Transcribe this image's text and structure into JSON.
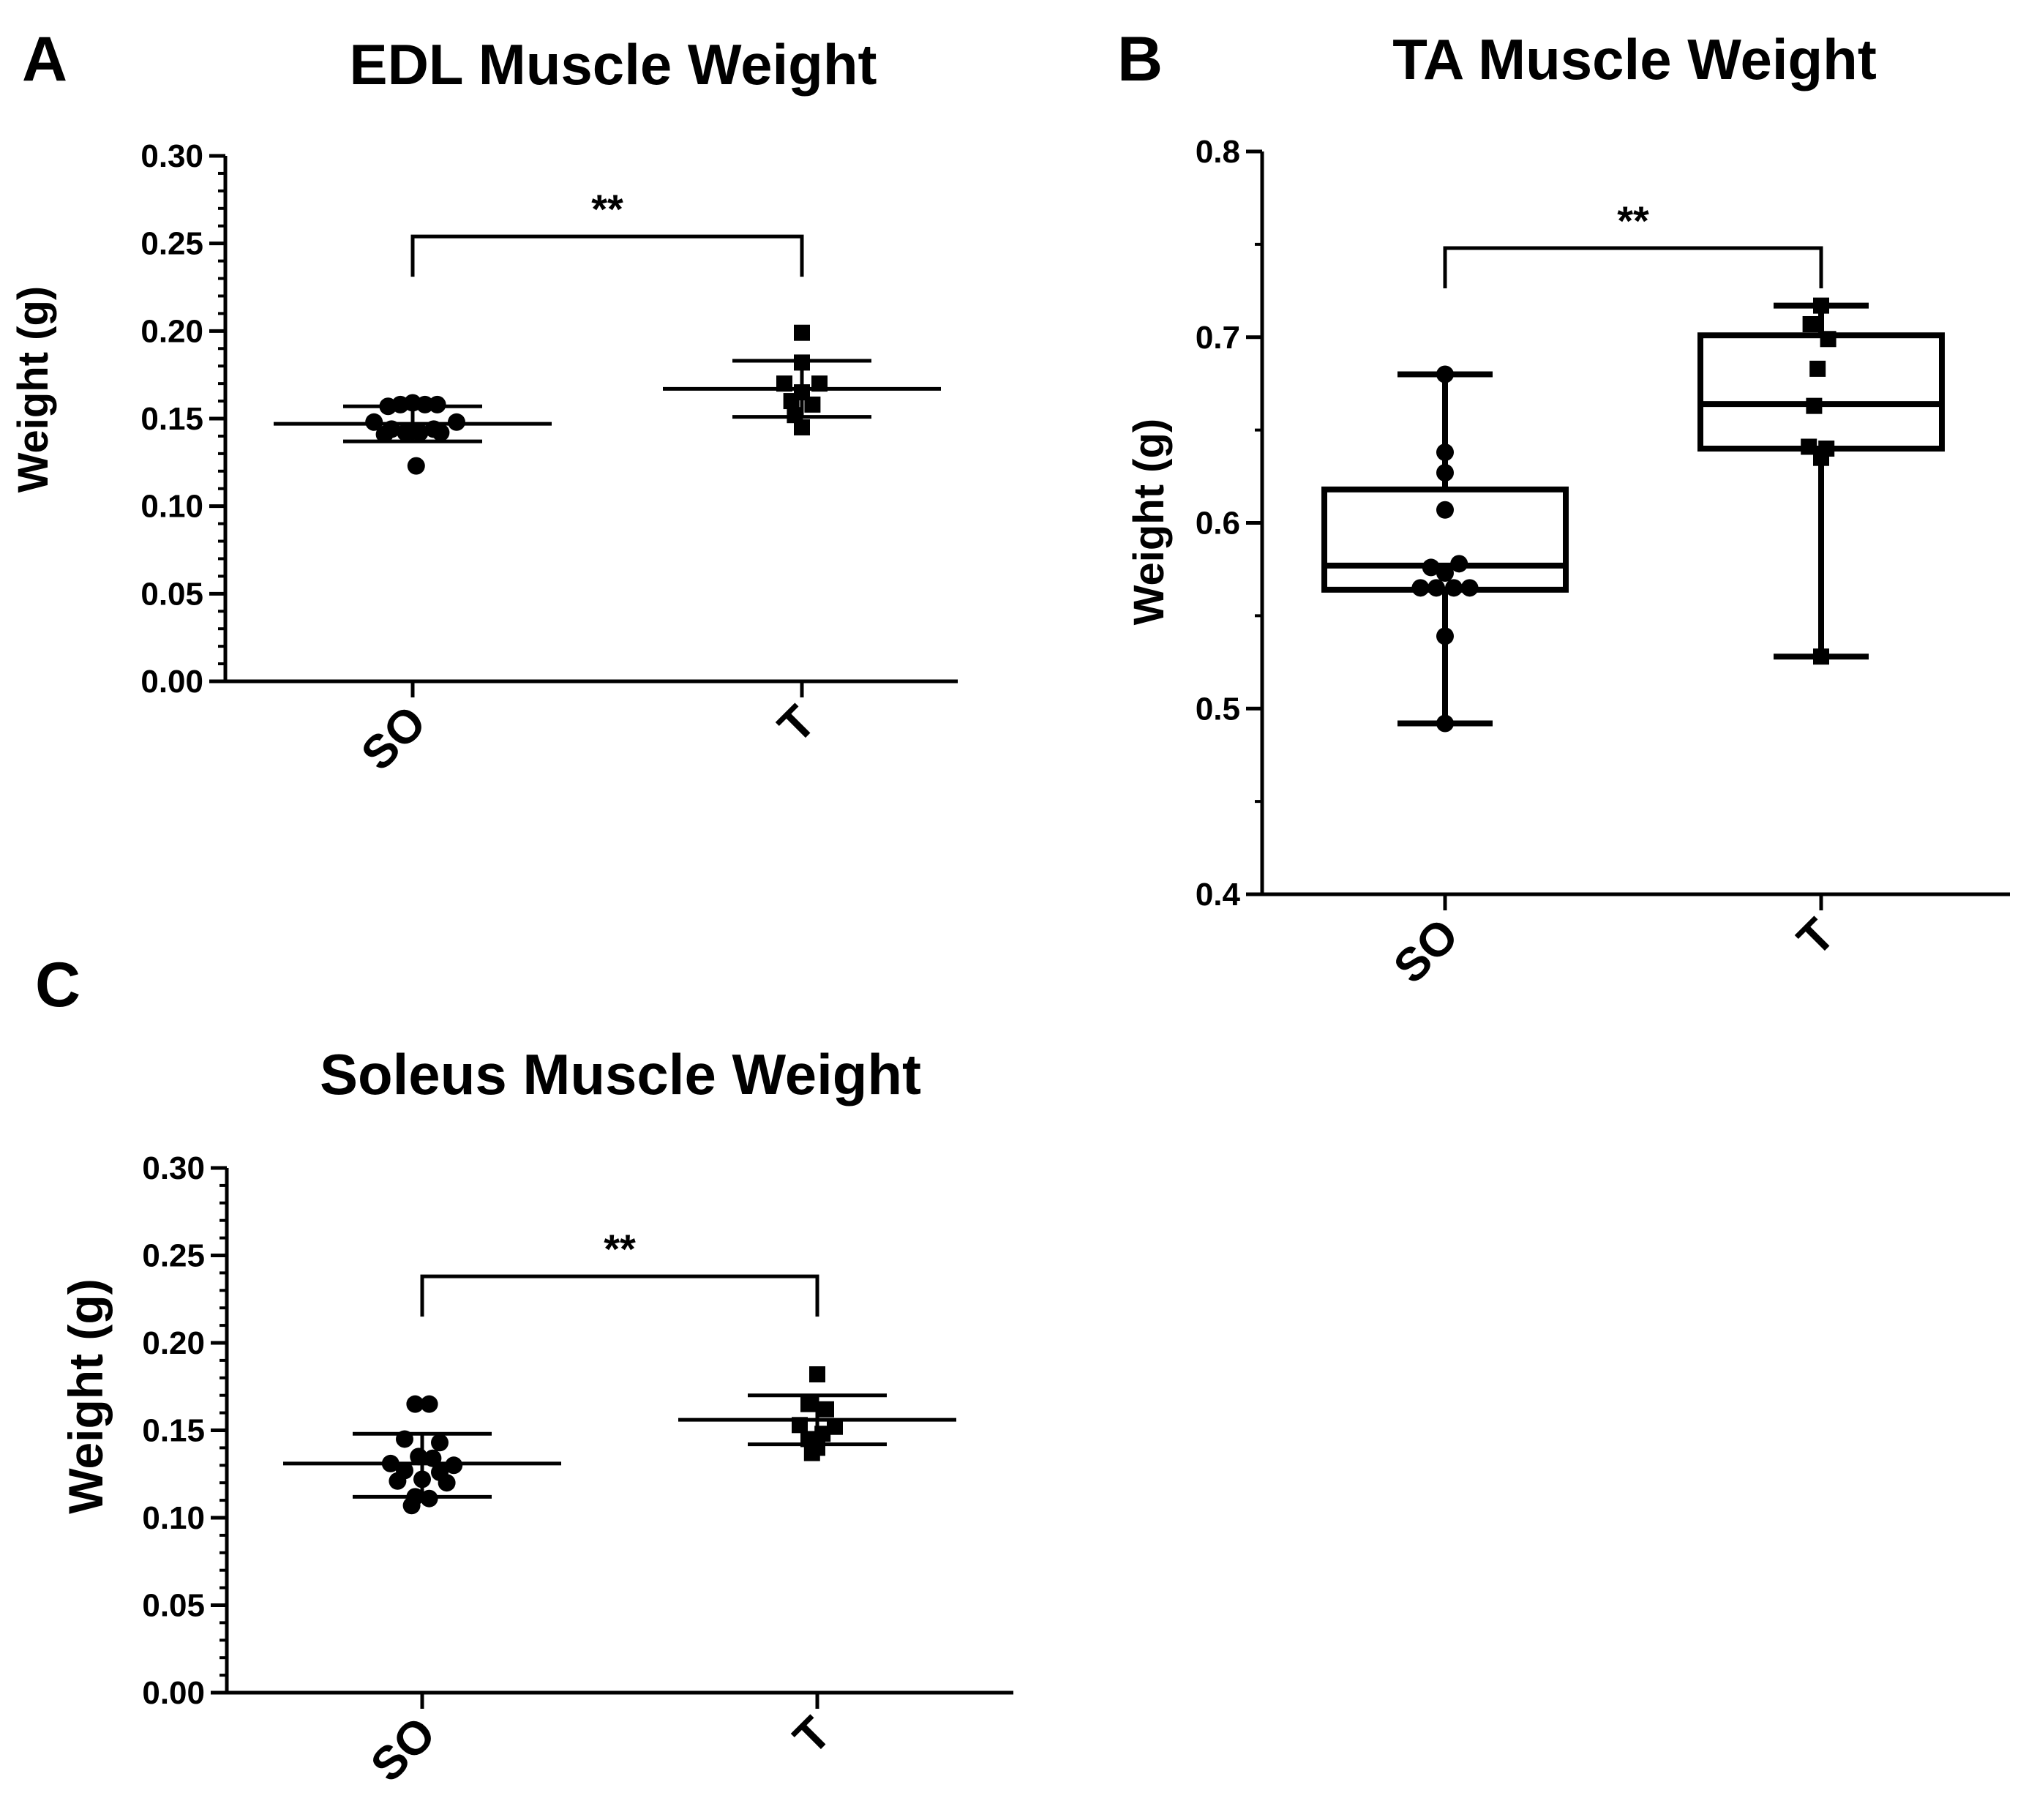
{
  "figure": {
    "significance_symbol": "**"
  },
  "chart_data": [
    {
      "panel_label": "A",
      "type": "scatter",
      "title": "EDL Muscle Weight",
      "xlabel": "",
      "ylabel": "Weight (g)",
      "categories": [
        "SO",
        "T"
      ],
      "ylim": [
        0,
        0.3
      ],
      "yticks": [
        "0.00",
        "0.05",
        "0.10",
        "0.15",
        "0.20",
        "0.25",
        "0.30"
      ],
      "ytick_values": [
        0,
        0.05,
        0.1,
        0.15,
        0.2,
        0.25,
        0.3
      ],
      "minor_tick_step": 0.01,
      "grid": false,
      "series": [
        {
          "name": "SO",
          "marker": "circle",
          "points": [
            {
              "x": 0,
              "y": 0.159
            },
            {
              "x": -0.07,
              "y": 0.158
            },
            {
              "x": 0.07,
              "y": 0.158
            },
            {
              "x": -0.14,
              "y": 0.157
            },
            {
              "x": 0.14,
              "y": 0.158
            },
            {
              "x": -0.22,
              "y": 0.148
            },
            {
              "x": 0.25,
              "y": 0.148
            },
            {
              "x": -0.12,
              "y": 0.144
            },
            {
              "x": 0.12,
              "y": 0.144
            },
            {
              "x": -0.04,
              "y": 0.142
            },
            {
              "x": 0.04,
              "y": 0.142
            },
            {
              "x": -0.16,
              "y": 0.141
            },
            {
              "x": 0.16,
              "y": 0.142
            },
            {
              "x": 0.02,
              "y": 0.123
            }
          ],
          "mean": 0.147,
          "sd_low": 0.137,
          "sd_high": 0.157
        },
        {
          "name": "T",
          "marker": "square",
          "points": [
            {
              "x": 0.0,
              "y": 0.199
            },
            {
              "x": 0.0,
              "y": 0.182
            },
            {
              "x": -0.1,
              "y": 0.17
            },
            {
              "x": 0.1,
              "y": 0.17
            },
            {
              "x": 0.0,
              "y": 0.165
            },
            {
              "x": -0.06,
              "y": 0.16
            },
            {
              "x": 0.06,
              "y": 0.158
            },
            {
              "x": -0.04,
              "y": 0.152
            },
            {
              "x": 0.0,
              "y": 0.145
            }
          ],
          "mean": 0.167,
          "sd_low": 0.151,
          "sd_high": 0.183
        }
      ],
      "bracket": {
        "y": 0.254,
        "left": "SO",
        "right": "T",
        "label": "**"
      }
    },
    {
      "panel_label": "B",
      "type": "box",
      "title": "TA Muscle  Weight",
      "xlabel": "",
      "ylabel": "Weight (g)",
      "categories": [
        "SO",
        "T"
      ],
      "ylim": [
        0.4,
        0.8
      ],
      "yticks": [
        "0.4",
        "0.5",
        "0.6",
        "0.7",
        "0.8"
      ],
      "ytick_values": [
        0.4,
        0.5,
        0.6,
        0.7,
        0.8
      ],
      "minor_tick_step": 0.05,
      "grid": false,
      "series": [
        {
          "name": "SO",
          "marker": "circle",
          "box": {
            "min": 0.492,
            "q1": 0.564,
            "median": 0.577,
            "q3": 0.618,
            "max": 0.68
          },
          "points": [
            {
              "x": 0.0,
              "y": 0.68
            },
            {
              "x": 0.0,
              "y": 0.638
            },
            {
              "x": 0.0,
              "y": 0.627
            },
            {
              "x": 0.0,
              "y": 0.607
            },
            {
              "x": -0.08,
              "y": 0.576
            },
            {
              "x": 0.08,
              "y": 0.578
            },
            {
              "x": 0.0,
              "y": 0.573
            },
            {
              "x": -0.14,
              "y": 0.565
            },
            {
              "x": -0.05,
              "y": 0.565
            },
            {
              "x": 0.05,
              "y": 0.565
            },
            {
              "x": 0.14,
              "y": 0.565
            },
            {
              "x": 0.0,
              "y": 0.539
            },
            {
              "x": 0.0,
              "y": 0.492
            }
          ]
        },
        {
          "name": "T",
          "marker": "square",
          "box": {
            "min": 0.528,
            "q1": 0.64,
            "median": 0.664,
            "q3": 0.701,
            "max": 0.717
          },
          "points": [
            {
              "x": 0.0,
              "y": 0.717
            },
            {
              "x": -0.06,
              "y": 0.707
            },
            {
              "x": 0.04,
              "y": 0.699
            },
            {
              "x": -0.02,
              "y": 0.683
            },
            {
              "x": -0.04,
              "y": 0.663
            },
            {
              "x": -0.07,
              "y": 0.641
            },
            {
              "x": 0.0,
              "y": 0.635
            },
            {
              "x": 0.03,
              "y": 0.64
            },
            {
              "x": 0.0,
              "y": 0.528
            }
          ]
        }
      ],
      "bracket": {
        "y": 0.748,
        "left": "SO",
        "right": "T",
        "label": "**"
      }
    },
    {
      "panel_label": "C",
      "type": "scatter",
      "title": "Soleus Muscle Weight",
      "xlabel": "",
      "ylabel": "Weight (g)",
      "categories": [
        "SO",
        "T"
      ],
      "ylim": [
        0,
        0.3
      ],
      "yticks": [
        "0.00",
        "0.05",
        "0.10",
        "0.15",
        "0.20",
        "0.25",
        "0.30"
      ],
      "ytick_values": [
        0,
        0.05,
        0.1,
        0.15,
        0.2,
        0.25,
        0.3
      ],
      "minor_tick_step": 0.01,
      "grid": false,
      "series": [
        {
          "name": "SO",
          "marker": "circle",
          "points": [
            {
              "x": -0.04,
              "y": 0.165
            },
            {
              "x": 0.04,
              "y": 0.165
            },
            {
              "x": -0.1,
              "y": 0.145
            },
            {
              "x": 0.1,
              "y": 0.143
            },
            {
              "x": -0.02,
              "y": 0.135
            },
            {
              "x": 0.06,
              "y": 0.134
            },
            {
              "x": -0.18,
              "y": 0.131
            },
            {
              "x": 0.18,
              "y": 0.13
            },
            {
              "x": -0.1,
              "y": 0.127
            },
            {
              "x": 0.1,
              "y": 0.126
            },
            {
              "x": 0.0,
              "y": 0.122
            },
            {
              "x": -0.14,
              "y": 0.121
            },
            {
              "x": 0.14,
              "y": 0.12
            },
            {
              "x": -0.04,
              "y": 0.112
            },
            {
              "x": 0.04,
              "y": 0.111
            },
            {
              "x": -0.06,
              "y": 0.107
            }
          ],
          "mean": 0.131,
          "sd_low": 0.112,
          "sd_high": 0.148
        },
        {
          "name": "T",
          "marker": "square",
          "points": [
            {
              "x": 0.0,
              "y": 0.182
            },
            {
              "x": -0.05,
              "y": 0.165
            },
            {
              "x": 0.05,
              "y": 0.162
            },
            {
              "x": -0.1,
              "y": 0.153
            },
            {
              "x": 0.1,
              "y": 0.152
            },
            {
              "x": -0.05,
              "y": 0.145
            },
            {
              "x": 0.03,
              "y": 0.148
            },
            {
              "x": 0.0,
              "y": 0.14
            },
            {
              "x": -0.03,
              "y": 0.137
            }
          ],
          "mean": 0.156,
          "sd_low": 0.142,
          "sd_high": 0.17
        }
      ],
      "bracket": {
        "y": 0.238,
        "left": "SO",
        "right": "T",
        "label": "**"
      }
    }
  ]
}
